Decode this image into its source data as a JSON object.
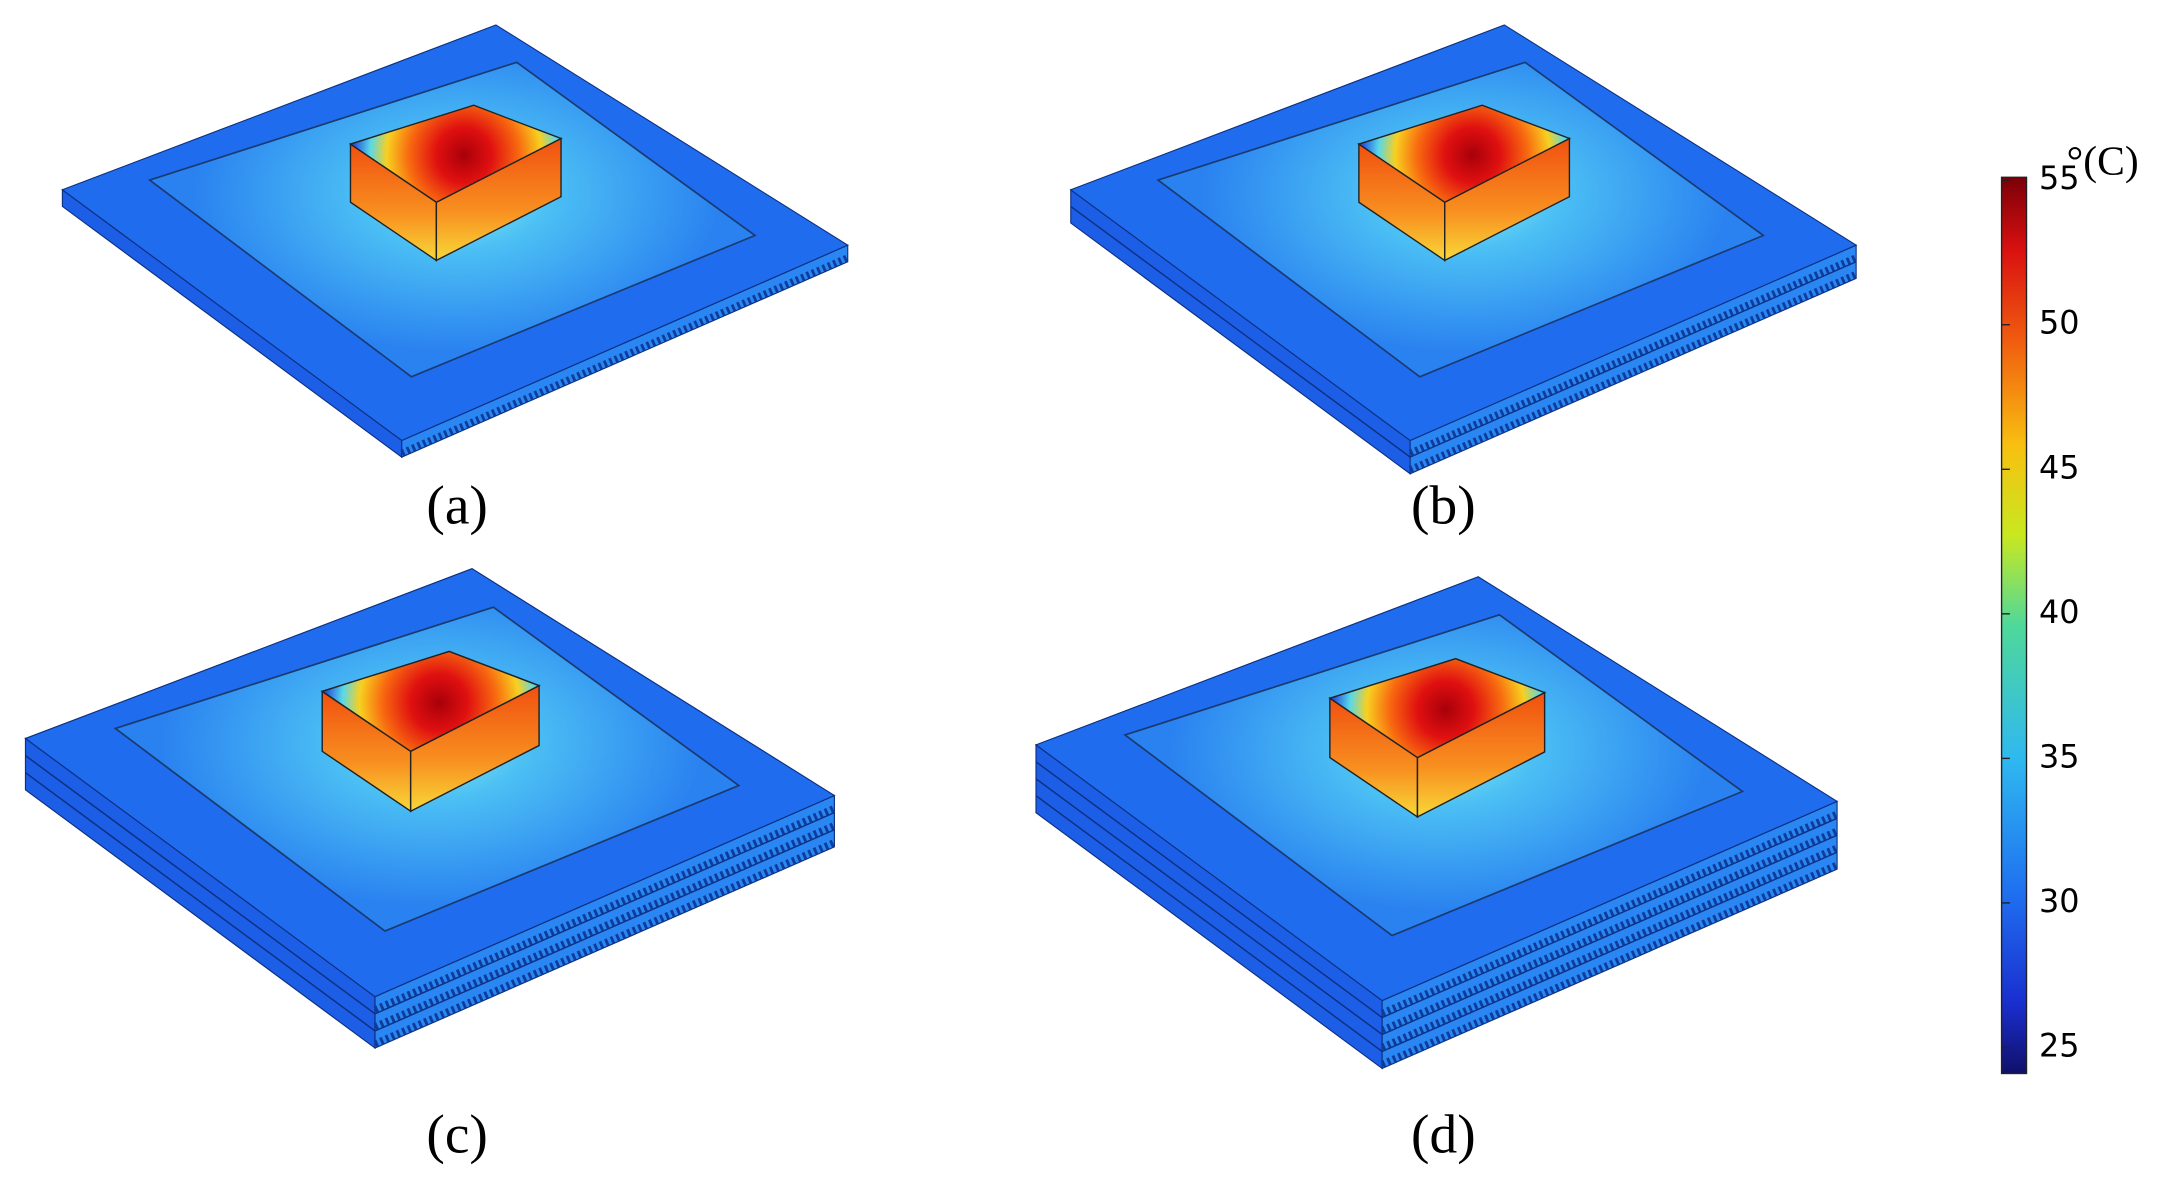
{
  "figure": {
    "panels": [
      {
        "label": "(a)"
      },
      {
        "label": "(b)"
      },
      {
        "label": "(c)"
      },
      {
        "label": "(d)"
      }
    ],
    "colorbar": {
      "unit": "°(C)",
      "lim": [
        24.1,
        55.1
      ],
      "ticks": [
        25,
        30,
        35,
        40,
        45,
        50,
        55
      ]
    }
  }
}
